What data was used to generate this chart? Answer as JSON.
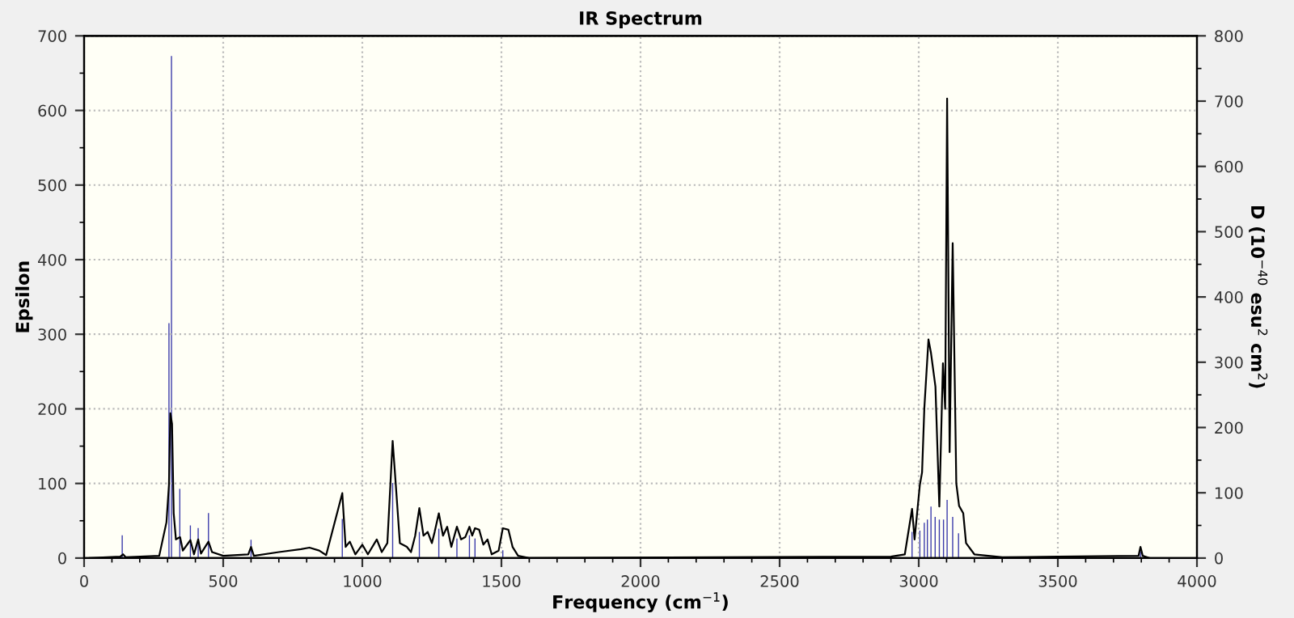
{
  "chart_data": {
    "type": "line",
    "title": "IR Spectrum",
    "xlabel": "Frequency (cm$^{−1}$)",
    "ylabel": "Epsilon",
    "y2label": "D (10$^{−40}$ esu$^{2}$ cm$^{2}$)",
    "xlim": [
      0,
      4000
    ],
    "xticks": [
      0,
      500,
      1000,
      1500,
      2000,
      2500,
      3000,
      3500,
      4000
    ],
    "ylim": [
      0,
      700
    ],
    "yticks": [
      0,
      100,
      200,
      300,
      400,
      500,
      600,
      700
    ],
    "y2lim": [
      0,
      800
    ],
    "y2ticks": [
      0,
      100,
      200,
      300,
      400,
      500,
      600,
      700,
      800
    ],
    "grid": true,
    "legend": false,
    "series": [
      {
        "color": "#000000",
        "x": [
          20,
          130,
          140,
          150,
          270,
          296,
          305,
          310,
          316,
          322,
          330,
          345,
          355,
          382,
          395,
          410,
          420,
          447,
          460,
          500,
          590,
          600,
          610,
          700,
          780,
          810,
          845,
          870,
          928,
          940,
          955,
          975,
          1000,
          1020,
          1052,
          1070,
          1090,
          1109,
          1120,
          1135,
          1160,
          1175,
          1190,
          1205,
          1220,
          1235,
          1250,
          1260,
          1275,
          1290,
          1305,
          1320,
          1340,
          1355,
          1370,
          1385,
          1395,
          1405,
          1420,
          1435,
          1450,
          1465,
          1490,
          1505,
          1525,
          1540,
          1560,
          1600,
          2900,
          2950,
          2976,
          2985,
          3004,
          3012,
          3020,
          3035,
          3044,
          3060,
          3074,
          3087,
          3095,
          3102,
          3111,
          3122,
          3135,
          3145,
          3160,
          3170,
          3200,
          3300,
          3500,
          3790,
          3797,
          3805,
          3830
        ],
        "values": [
          0,
          2,
          5,
          1,
          3,
          48,
          98,
          194,
          180,
          60,
          25,
          28,
          10,
          24,
          5,
          25,
          6,
          22,
          8,
          3,
          5,
          15,
          3,
          8,
          12,
          14,
          10,
          4,
          87,
          15,
          22,
          5,
          18,
          5,
          25,
          8,
          20,
          157,
          100,
          20,
          15,
          8,
          30,
          67,
          30,
          35,
          20,
          35,
          60,
          30,
          42,
          15,
          42,
          25,
          28,
          42,
          30,
          40,
          38,
          18,
          25,
          5,
          10,
          40,
          38,
          15,
          3,
          0,
          2,
          5,
          66,
          25,
          98,
          115,
          200,
          293,
          275,
          230,
          69,
          261,
          200,
          616,
          142,
          422,
          100,
          70,
          60,
          20,
          5,
          1,
          2,
          3,
          15,
          3,
          0
        ]
      },
      {
        "type": "bar",
        "axis": "y2",
        "color": "#3a3aaa",
        "x": [
          137,
          305,
          314,
          344,
          382,
          410,
          447,
          600,
          928,
          1109,
          1205,
          1275,
          1340,
          1385,
          1405,
          1505,
          2976,
          3004,
          3020,
          3031,
          3044,
          3059,
          3074,
          3089,
          3102,
          3122,
          3143,
          3797
        ],
        "values": [
          35,
          360,
          769,
          106,
          50,
          46,
          69,
          28,
          60,
          115,
          40,
          45,
          30,
          35,
          30,
          12,
          40,
          42,
          54,
          59,
          79,
          63,
          59,
          59,
          89,
          63,
          38,
          10
        ]
      }
    ]
  }
}
